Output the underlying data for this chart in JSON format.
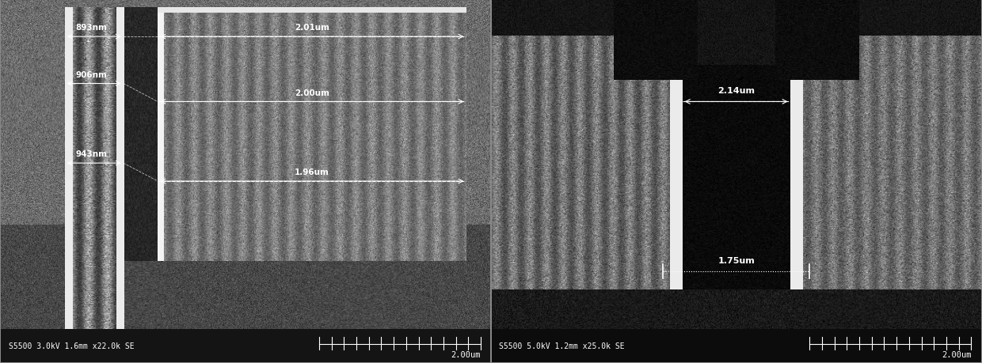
{
  "left_image": {
    "label_bottom_left": "S5500 3.0kV 1.6mm x22.0k SE",
    "label_bottom_right": "2.00um",
    "measurements": {
      "left_top": "893nm",
      "left_mid": "906nm",
      "left_bot": "943nm",
      "right_top": "2.01um",
      "right_mid": "2.00um",
      "right_bot": "1.96um"
    },
    "bg_color": "#787878",
    "structure_color": "#b0b0b0",
    "dark_color": "#1a1a1a",
    "medium_color": "#555555"
  },
  "right_image": {
    "label_bottom_left": "S5500 5.0kV 1.2mm x25.0k SE",
    "label_bottom_right": "2.00um",
    "measurements": {
      "top": "2.14um",
      "bottom": "1.75um"
    },
    "bg_color": "#787878",
    "dark_color": "#111111",
    "structure_color": "#aaaaaa"
  },
  "fig_width": 12.4,
  "fig_height": 4.6,
  "dpi": 100,
  "bg_color": "#888888"
}
